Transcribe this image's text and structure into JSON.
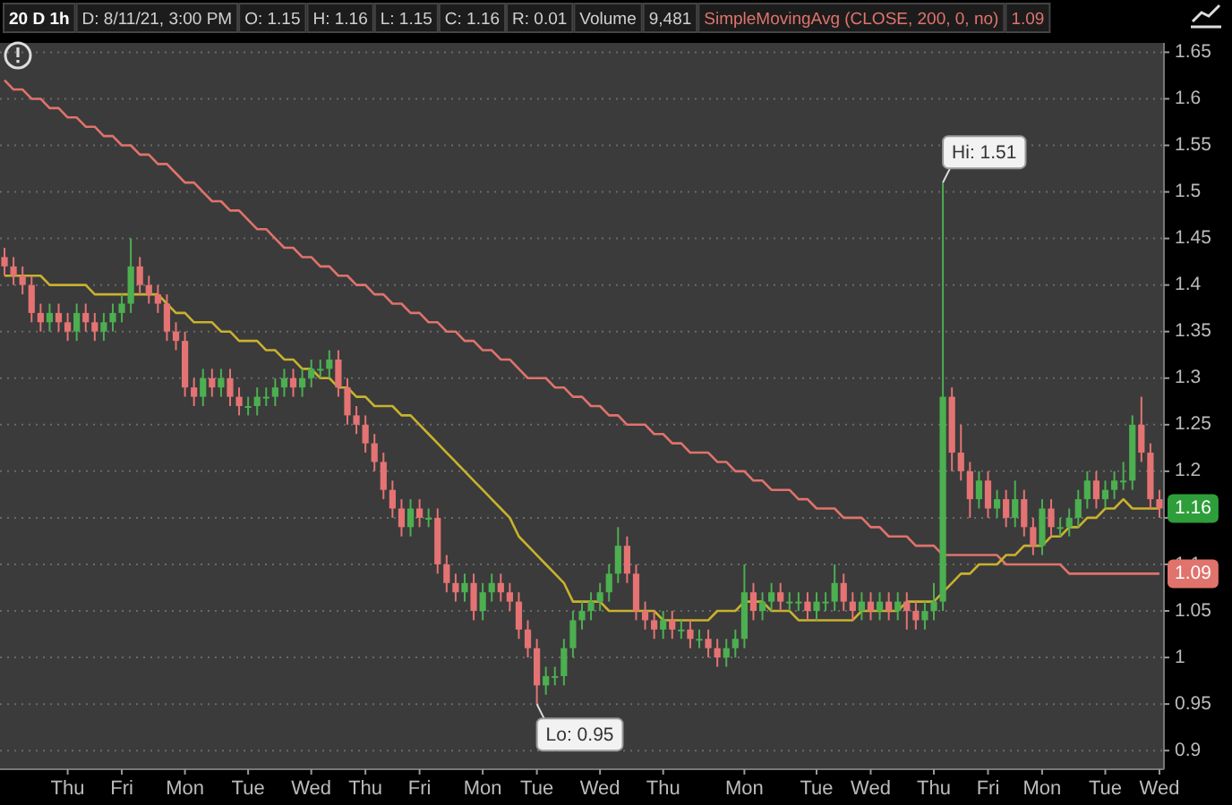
{
  "chart_data": {
    "type": "candlestick",
    "title": "20 D 1h",
    "categories": [
      null,
      null,
      null,
      null,
      null,
      null,
      null,
      "Thu",
      null,
      null,
      null,
      null,
      null,
      "Fri",
      null,
      null,
      null,
      null,
      null,
      null,
      "Mon",
      null,
      null,
      null,
      null,
      null,
      null,
      "Tue",
      null,
      null,
      null,
      null,
      null,
      null,
      "Wed",
      null,
      null,
      null,
      null,
      null,
      "Thu",
      null,
      null,
      null,
      null,
      null,
      "Fri",
      null,
      null,
      null,
      null,
      null,
      null,
      "Mon",
      null,
      null,
      null,
      null,
      null,
      "Tue",
      null,
      null,
      null,
      null,
      null,
      null,
      "Wed",
      null,
      null,
      null,
      null,
      null,
      null,
      "Thu",
      null,
      null,
      null,
      null,
      null,
      null,
      null,
      null,
      "Mon",
      null,
      null,
      null,
      null,
      null,
      null,
      null,
      "Tue",
      null,
      null,
      null,
      null,
      null,
      "Wed",
      null,
      null,
      null,
      null,
      null,
      null,
      "Thu",
      null,
      null,
      null,
      null,
      null,
      "Fri",
      null,
      null,
      null,
      null,
      null,
      "Mon",
      null,
      null,
      null,
      null,
      null,
      null,
      "Tue",
      null,
      null,
      null,
      null,
      null,
      "Wed"
    ],
    "ohlc": [
      [
        1.43,
        1.44,
        1.41,
        1.42
      ],
      [
        1.42,
        1.43,
        1.4,
        1.41
      ],
      [
        1.41,
        1.42,
        1.39,
        1.4
      ],
      [
        1.4,
        1.41,
        1.36,
        1.37
      ],
      [
        1.37,
        1.38,
        1.35,
        1.36
      ],
      [
        1.36,
        1.38,
        1.35,
        1.37
      ],
      [
        1.37,
        1.38,
        1.35,
        1.36
      ],
      [
        1.36,
        1.37,
        1.34,
        1.35
      ],
      [
        1.35,
        1.38,
        1.34,
        1.37
      ],
      [
        1.37,
        1.38,
        1.35,
        1.36
      ],
      [
        1.36,
        1.37,
        1.34,
        1.35
      ],
      [
        1.35,
        1.37,
        1.34,
        1.36
      ],
      [
        1.36,
        1.38,
        1.35,
        1.37
      ],
      [
        1.37,
        1.39,
        1.36,
        1.38
      ],
      [
        1.38,
        1.45,
        1.37,
        1.42
      ],
      [
        1.42,
        1.43,
        1.39,
        1.4
      ],
      [
        1.4,
        1.41,
        1.38,
        1.39
      ],
      [
        1.39,
        1.4,
        1.37,
        1.38
      ],
      [
        1.38,
        1.39,
        1.34,
        1.35
      ],
      [
        1.35,
        1.36,
        1.33,
        1.34
      ],
      [
        1.34,
        1.35,
        1.28,
        1.29
      ],
      [
        1.29,
        1.3,
        1.27,
        1.28
      ],
      [
        1.28,
        1.31,
        1.27,
        1.3
      ],
      [
        1.3,
        1.31,
        1.28,
        1.29
      ],
      [
        1.29,
        1.31,
        1.28,
        1.3
      ],
      [
        1.3,
        1.31,
        1.27,
        1.28
      ],
      [
        1.28,
        1.29,
        1.26,
        1.27
      ],
      [
        1.27,
        1.28,
        1.26,
        1.27
      ],
      [
        1.27,
        1.29,
        1.26,
        1.28
      ],
      [
        1.28,
        1.29,
        1.27,
        1.28
      ],
      [
        1.28,
        1.3,
        1.27,
        1.29
      ],
      [
        1.29,
        1.31,
        1.28,
        1.3
      ],
      [
        1.3,
        1.31,
        1.28,
        1.29
      ],
      [
        1.29,
        1.31,
        1.28,
        1.3
      ],
      [
        1.3,
        1.32,
        1.29,
        1.31
      ],
      [
        1.31,
        1.32,
        1.3,
        1.31
      ],
      [
        1.31,
        1.33,
        1.3,
        1.32
      ],
      [
        1.32,
        1.33,
        1.28,
        1.29
      ],
      [
        1.29,
        1.3,
        1.25,
        1.26
      ],
      [
        1.26,
        1.27,
        1.24,
        1.25
      ],
      [
        1.25,
        1.26,
        1.22,
        1.23
      ],
      [
        1.23,
        1.24,
        1.2,
        1.21
      ],
      [
        1.21,
        1.22,
        1.17,
        1.18
      ],
      [
        1.18,
        1.19,
        1.15,
        1.16
      ],
      [
        1.16,
        1.17,
        1.13,
        1.14
      ],
      [
        1.14,
        1.17,
        1.13,
        1.16
      ],
      [
        1.16,
        1.17,
        1.14,
        1.15
      ],
      [
        1.15,
        1.16,
        1.14,
        1.15
      ],
      [
        1.15,
        1.16,
        1.09,
        1.1
      ],
      [
        1.1,
        1.11,
        1.07,
        1.08
      ],
      [
        1.08,
        1.09,
        1.06,
        1.07
      ],
      [
        1.07,
        1.09,
        1.06,
        1.08
      ],
      [
        1.08,
        1.09,
        1.04,
        1.05
      ],
      [
        1.05,
        1.08,
        1.04,
        1.07
      ],
      [
        1.07,
        1.09,
        1.06,
        1.08
      ],
      [
        1.08,
        1.09,
        1.06,
        1.07
      ],
      [
        1.07,
        1.08,
        1.05,
        1.06
      ],
      [
        1.06,
        1.07,
        1.02,
        1.03
      ],
      [
        1.03,
        1.04,
        1.0,
        1.01
      ],
      [
        1.01,
        1.02,
        0.95,
        0.97
      ],
      [
        0.97,
        0.99,
        0.96,
        0.98
      ],
      [
        0.98,
        0.99,
        0.97,
        0.98
      ],
      [
        0.98,
        1.02,
        0.97,
        1.01
      ],
      [
        1.01,
        1.05,
        1.0,
        1.04
      ],
      [
        1.04,
        1.06,
        1.03,
        1.05
      ],
      [
        1.05,
        1.07,
        1.04,
        1.06
      ],
      [
        1.06,
        1.08,
        1.05,
        1.07
      ],
      [
        1.07,
        1.1,
        1.06,
        1.09
      ],
      [
        1.09,
        1.14,
        1.08,
        1.12
      ],
      [
        1.12,
        1.13,
        1.08,
        1.09
      ],
      [
        1.09,
        1.1,
        1.04,
        1.05
      ],
      [
        1.05,
        1.06,
        1.03,
        1.04
      ],
      [
        1.04,
        1.05,
        1.02,
        1.03
      ],
      [
        1.03,
        1.05,
        1.02,
        1.04
      ],
      [
        1.04,
        1.05,
        1.02,
        1.03
      ],
      [
        1.03,
        1.04,
        1.02,
        1.03
      ],
      [
        1.03,
        1.04,
        1.01,
        1.02
      ],
      [
        1.02,
        1.03,
        1.01,
        1.02
      ],
      [
        1.02,
        1.03,
        1.0,
        1.01
      ],
      [
        1.01,
        1.02,
        0.99,
        1.0
      ],
      [
        1.0,
        1.02,
        0.99,
        1.01
      ],
      [
        1.01,
        1.03,
        1.0,
        1.02
      ],
      [
        1.02,
        1.1,
        1.01,
        1.07
      ],
      [
        1.07,
        1.08,
        1.04,
        1.05
      ],
      [
        1.05,
        1.07,
        1.04,
        1.06
      ],
      [
        1.06,
        1.08,
        1.05,
        1.07
      ],
      [
        1.07,
        1.08,
        1.05,
        1.06
      ],
      [
        1.06,
        1.07,
        1.05,
        1.06
      ],
      [
        1.06,
        1.07,
        1.05,
        1.06
      ],
      [
        1.06,
        1.07,
        1.04,
        1.05
      ],
      [
        1.05,
        1.07,
        1.04,
        1.06
      ],
      [
        1.06,
        1.07,
        1.05,
        1.06
      ],
      [
        1.06,
        1.1,
        1.05,
        1.08
      ],
      [
        1.08,
        1.09,
        1.05,
        1.06
      ],
      [
        1.06,
        1.07,
        1.04,
        1.05
      ],
      [
        1.05,
        1.07,
        1.04,
        1.06
      ],
      [
        1.06,
        1.07,
        1.04,
        1.05
      ],
      [
        1.05,
        1.07,
        1.04,
        1.06
      ],
      [
        1.06,
        1.07,
        1.04,
        1.05
      ],
      [
        1.05,
        1.07,
        1.04,
        1.06
      ],
      [
        1.06,
        1.07,
        1.03,
        1.05
      ],
      [
        1.05,
        1.06,
        1.03,
        1.04
      ],
      [
        1.04,
        1.06,
        1.03,
        1.05
      ],
      [
        1.05,
        1.08,
        1.04,
        1.06
      ],
      [
        1.06,
        1.51,
        1.05,
        1.28
      ],
      [
        1.28,
        1.29,
        1.2,
        1.22
      ],
      [
        1.22,
        1.25,
        1.19,
        1.2
      ],
      [
        1.2,
        1.21,
        1.15,
        1.17
      ],
      [
        1.17,
        1.2,
        1.16,
        1.19
      ],
      [
        1.19,
        1.2,
        1.15,
        1.16
      ],
      [
        1.16,
        1.18,
        1.15,
        1.17
      ],
      [
        1.17,
        1.18,
        1.14,
        1.15
      ],
      [
        1.15,
        1.19,
        1.14,
        1.17
      ],
      [
        1.17,
        1.18,
        1.13,
        1.14
      ],
      [
        1.14,
        1.15,
        1.11,
        1.12
      ],
      [
        1.12,
        1.17,
        1.11,
        1.16
      ],
      [
        1.16,
        1.17,
        1.13,
        1.14
      ],
      [
        1.14,
        1.15,
        1.13,
        1.14
      ],
      [
        1.14,
        1.16,
        1.13,
        1.15
      ],
      [
        1.15,
        1.18,
        1.14,
        1.17
      ],
      [
        1.17,
        1.2,
        1.16,
        1.19
      ],
      [
        1.19,
        1.2,
        1.16,
        1.17
      ],
      [
        1.17,
        1.19,
        1.16,
        1.18
      ],
      [
        1.18,
        1.2,
        1.17,
        1.19
      ],
      [
        1.19,
        1.21,
        1.18,
        1.19
      ],
      [
        1.19,
        1.26,
        1.18,
        1.25
      ],
      [
        1.25,
        1.28,
        1.21,
        1.22
      ],
      [
        1.22,
        1.23,
        1.16,
        1.17
      ],
      [
        1.17,
        1.18,
        1.15,
        1.16
      ]
    ],
    "series": [
      {
        "type": "line",
        "name": "SimpleMovingAvg (CLOSE, 200, 0, no)",
        "color": "#e0736c",
        "values": [
          1.62,
          1.61,
          1.61,
          1.6,
          1.6,
          1.59,
          1.59,
          1.58,
          1.58,
          1.57,
          1.57,
          1.56,
          1.56,
          1.55,
          1.55,
          1.54,
          1.54,
          1.53,
          1.53,
          1.52,
          1.51,
          1.51,
          1.5,
          1.49,
          1.49,
          1.48,
          1.48,
          1.47,
          1.46,
          1.46,
          1.45,
          1.44,
          1.44,
          1.43,
          1.43,
          1.42,
          1.42,
          1.41,
          1.41,
          1.4,
          1.4,
          1.39,
          1.39,
          1.38,
          1.38,
          1.37,
          1.37,
          1.36,
          1.36,
          1.35,
          1.35,
          1.34,
          1.34,
          1.33,
          1.33,
          1.32,
          1.32,
          1.31,
          1.3,
          1.3,
          1.3,
          1.29,
          1.29,
          1.28,
          1.28,
          1.27,
          1.27,
          1.26,
          1.26,
          1.25,
          1.25,
          1.25,
          1.24,
          1.24,
          1.23,
          1.23,
          1.22,
          1.22,
          1.22,
          1.21,
          1.21,
          1.2,
          1.2,
          1.19,
          1.19,
          1.18,
          1.18,
          1.18,
          1.17,
          1.17,
          1.16,
          1.16,
          1.16,
          1.15,
          1.15,
          1.15,
          1.14,
          1.14,
          1.13,
          1.13,
          1.13,
          1.12,
          1.12,
          1.12,
          1.11,
          1.11,
          1.11,
          1.11,
          1.11,
          1.11,
          1.11,
          1.1,
          1.1,
          1.1,
          1.1,
          1.1,
          1.1,
          1.1,
          1.09,
          1.09,
          1.09,
          1.09,
          1.09,
          1.09,
          1.09,
          1.09,
          1.09,
          1.09,
          1.09
        ]
      },
      {
        "type": "line",
        "color": "#c9b22e",
        "values": [
          1.41,
          1.41,
          1.41,
          1.41,
          1.41,
          1.4,
          1.4,
          1.4,
          1.4,
          1.4,
          1.39,
          1.39,
          1.39,
          1.39,
          1.39,
          1.39,
          1.39,
          1.39,
          1.38,
          1.37,
          1.37,
          1.36,
          1.36,
          1.36,
          1.35,
          1.35,
          1.34,
          1.34,
          1.34,
          1.33,
          1.33,
          1.32,
          1.32,
          1.31,
          1.31,
          1.3,
          1.3,
          1.29,
          1.29,
          1.28,
          1.28,
          1.27,
          1.27,
          1.27,
          1.26,
          1.26,
          1.25,
          1.24,
          1.23,
          1.22,
          1.21,
          1.2,
          1.19,
          1.18,
          1.17,
          1.16,
          1.15,
          1.13,
          1.12,
          1.11,
          1.1,
          1.09,
          1.08,
          1.06,
          1.06,
          1.06,
          1.06,
          1.05,
          1.05,
          1.05,
          1.05,
          1.05,
          1.05,
          1.04,
          1.04,
          1.04,
          1.04,
          1.04,
          1.04,
          1.05,
          1.05,
          1.05,
          1.06,
          1.06,
          1.06,
          1.05,
          1.05,
          1.05,
          1.04,
          1.04,
          1.04,
          1.04,
          1.04,
          1.04,
          1.04,
          1.05,
          1.05,
          1.05,
          1.05,
          1.05,
          1.06,
          1.06,
          1.06,
          1.06,
          1.07,
          1.08,
          1.09,
          1.09,
          1.1,
          1.1,
          1.1,
          1.11,
          1.11,
          1.12,
          1.12,
          1.12,
          1.13,
          1.13,
          1.14,
          1.14,
          1.15,
          1.15,
          1.16,
          1.16,
          1.17,
          1.16,
          1.16,
          1.16,
          1.16
        ]
      }
    ],
    "ylim": [
      0.88,
      1.66
    ],
    "yticks": [
      0.9,
      0.95,
      1,
      1.05,
      1.1,
      1.15,
      1.2,
      1.25,
      1.3,
      1.35,
      1.4,
      1.45,
      1.5,
      1.55,
      1.6,
      1.65
    ],
    "grid": "y",
    "annotations": [
      "D: 8/11/21, 3:00 PM",
      "O: 1.15",
      "H: 1.16",
      "L: 1.15",
      "C: 1.16",
      "R: 0.01",
      "Volume",
      "9,481",
      "1.09",
      "Hi: 1.51",
      "Lo: 0.95",
      "1.16",
      "1.09"
    ]
  }
}
